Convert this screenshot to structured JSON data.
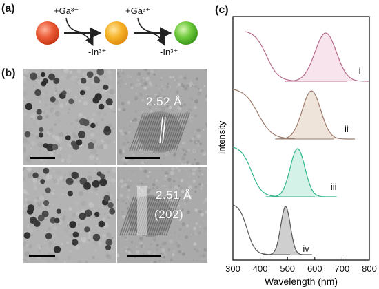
{
  "panels": {
    "a": "(a)",
    "b": "(b)",
    "c": "(c)"
  },
  "scheme": {
    "add_1": "+Ga³⁺",
    "remove_1": "-In³⁺",
    "add_2": "+Ga³⁺",
    "remove_2": "-In³⁺",
    "colors": [
      "#e8502f",
      "#f5ae1e",
      "#5cc230"
    ]
  },
  "tem": {
    "top_spacing": "2.52 Å",
    "bottom_spacing": "2.51 Å",
    "bottom_plane": "(202)"
  },
  "chart_data": {
    "type": "line",
    "xlabel": "Wavelength (nm)",
    "ylabel": "Intensity",
    "xlim": [
      300,
      800
    ],
    "xticks": [
      300,
      400,
      500,
      600,
      700,
      800
    ],
    "series": [
      {
        "name": "i",
        "color": "#b76a8c",
        "fill": "#f7e4ec",
        "peak": 640,
        "width": 58,
        "offset": 3,
        "absorption_start": 345,
        "absorption_end": 540,
        "emission_start": 490,
        "emission_end": 800
      },
      {
        "name": "ii",
        "color": "#9b7a6a",
        "fill": "#efe4da",
        "peak": 588,
        "width": 50,
        "offset": 2,
        "absorption_start": 300,
        "absorption_end": 530,
        "emission_start": 455,
        "emission_end": 750
      },
      {
        "name": "iii",
        "color": "#2fb587",
        "fill": "#d4f2e7",
        "peak": 537,
        "width": 40,
        "offset": 1,
        "absorption_start": 300,
        "absorption_end": 470,
        "emission_start": 420,
        "emission_end": 680
      },
      {
        "name": "iv",
        "color": "#555555",
        "fill": "#cfcfcf",
        "peak": 493,
        "width": 26,
        "offset": 0,
        "absorption_start": 300,
        "absorption_end": 430,
        "emission_start": 410,
        "emission_end": 590
      }
    ]
  }
}
